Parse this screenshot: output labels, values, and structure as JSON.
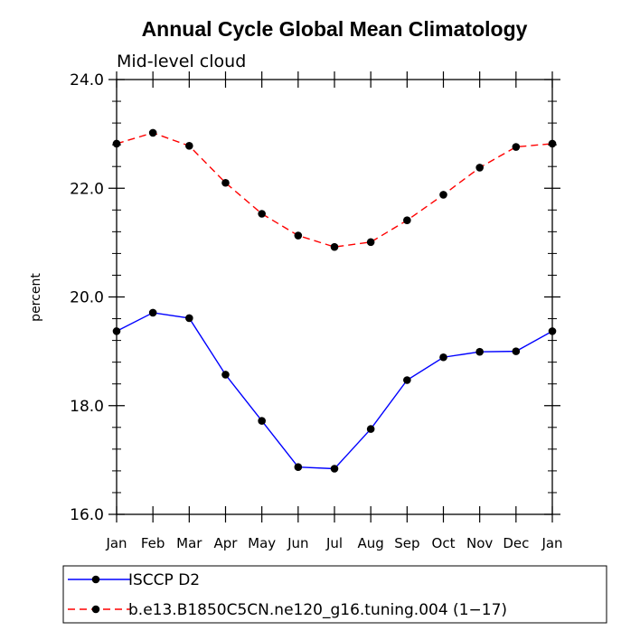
{
  "chart_data": {
    "type": "line",
    "title": "Annual Cycle Global Mean Climatology",
    "subtitle": "Mid-level cloud",
    "xlabel": "",
    "ylabel": "percent",
    "categories": [
      "Jan",
      "Feb",
      "Mar",
      "Apr",
      "May",
      "Jun",
      "Jul",
      "Aug",
      "Sep",
      "Oct",
      "Nov",
      "Dec",
      "Jan"
    ],
    "ylim": [
      16.0,
      24.0
    ],
    "y_ticks": [
      "16.0",
      "18.0",
      "20.0",
      "22.0",
      "24.0"
    ],
    "y_tick_values": [
      16,
      18,
      20,
      22,
      24
    ],
    "grid": false,
    "legend_position": "bottom",
    "series": [
      {
        "name": "ISCCP D2",
        "color": "#0000ff",
        "dash": "solid",
        "values": [
          19.37,
          19.71,
          19.61,
          18.57,
          17.72,
          16.87,
          16.84,
          17.57,
          18.47,
          18.89,
          18.99,
          19.0,
          19.37
        ]
      },
      {
        "name": "b.e13.B1850C5CN.ne120_g16.tuning.004 (1−17)",
        "color": "#ff0000",
        "dash": "dashed",
        "values": [
          22.82,
          23.02,
          22.78,
          22.1,
          21.53,
          21.13,
          20.92,
          21.01,
          21.41,
          21.88,
          22.38,
          22.76,
          22.82
        ]
      }
    ],
    "marker_color": "#000000"
  }
}
